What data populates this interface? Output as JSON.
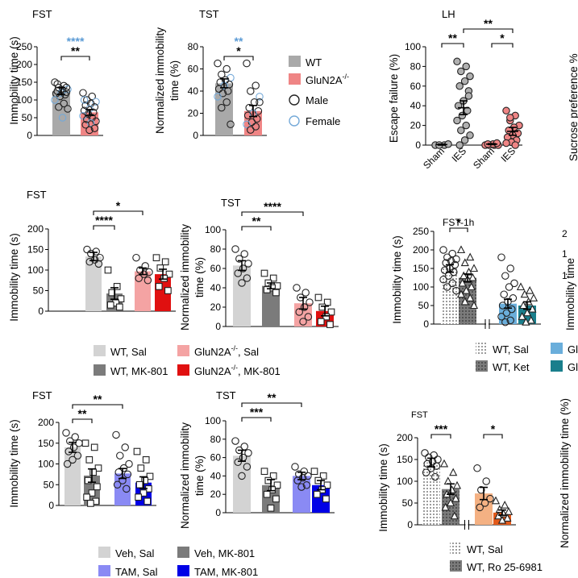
{
  "colors": {
    "wt": "#a9a9a9",
    "glun2a": "#ef8585",
    "male": "#222222",
    "female": "#74a9d8",
    "star_blue": "#5b9bd5",
    "sal_light": "#d3d3d3",
    "mk_dark": "#7b7b7b",
    "glun2a_sal": "#f4a3a3",
    "glun2a_mk": "#e01010",
    "tam_sal": "#8a8af4",
    "tam_mk": "#0000e6",
    "ket_blue": "#6aaedb",
    "ket_teal": "#1a7f8c",
    "ro_orange": "#f4b183",
    "ro_dark_orange": "#e35a1a"
  },
  "legends": {
    "top": [
      {
        "label": "WT",
        "kind": "fill",
        "color": "wt"
      },
      {
        "label": "GluN2A",
        "sup": "-/-",
        "kind": "fill",
        "color": "glun2a"
      },
      {
        "label": "Male",
        "kind": "circle",
        "color": "male"
      },
      {
        "label": "Female",
        "kind": "circle",
        "color": "female"
      }
    ],
    "row2": [
      {
        "label": "WT, Sal",
        "color": "sal_light"
      },
      {
        "label": "GluN2A",
        "sup": "-/-",
        "tail": ", Sal",
        "color": "glun2a_sal"
      },
      {
        "label": "WT, MK-801",
        "color": "mk_dark"
      },
      {
        "label": "GluN2A",
        "sup": "-/-",
        "tail": ", MK-801",
        "color": "glun2a_mk"
      }
    ],
    "ket": [
      {
        "label": "WT, Sal",
        "color": "sal_light",
        "pattern": "dots"
      },
      {
        "label": "WT, Ket",
        "color": "mk_dark",
        "pattern": "dots"
      },
      {
        "label": "Gl",
        "color": "ket_blue"
      },
      {
        "label": "Gl",
        "color": "ket_teal"
      }
    ],
    "row3": [
      {
        "label": "Veh, Sal",
        "color": "sal_light"
      },
      {
        "label": "Veh, MK-801",
        "color": "mk_dark"
      },
      {
        "label": "TAM, Sal",
        "color": "tam_sal"
      },
      {
        "label": "TAM, MK-801",
        "color": "tam_mk"
      }
    ],
    "ro": [
      {
        "label": "WT, Sal",
        "color": "sal_light",
        "pattern": "dots"
      },
      {
        "label": "WT, Ro 25-6981",
        "color": "mk_dark",
        "pattern": "dots"
      }
    ]
  },
  "chart_data": [
    {
      "id": "fst1",
      "type": "bar",
      "title": "FST",
      "ylabel": "Immobility time (s)",
      "ylim": [
        0,
        250
      ],
      "yticks": [
        0,
        50,
        100,
        150,
        200,
        250
      ],
      "categories": [
        "WT",
        "GluN2A-/-"
      ],
      "values": [
        125,
        65
      ],
      "errors": [
        10,
        8
      ],
      "bar_colors": [
        "wt",
        "glun2a"
      ],
      "points": [
        [
          150,
          140,
          135,
          130,
          128,
          125,
          122,
          120,
          118,
          115,
          110,
          100,
          90,
          80,
          75,
          50,
          145,
          135
        ],
        [
          120,
          110,
          100,
          95,
          90,
          85,
          80,
          75,
          70,
          65,
          60,
          55,
          50,
          45,
          40,
          35,
          30,
          20,
          15,
          100
        ]
      ],
      "brackets": [
        {
          "from": 0,
          "to": 1,
          "label": "**"
        },
        {
          "from": 0,
          "to": 1,
          "label": "****",
          "color": "star_blue",
          "level": 2
        }
      ]
    },
    {
      "id": "tst1",
      "type": "bar",
      "title": "TST",
      "ylabel": "Normalized immobility time (%)",
      "ylim": [
        0,
        80
      ],
      "yticks": [
        0,
        20,
        40,
        60,
        80
      ],
      "categories": [
        "WT",
        "GluN2A-/-"
      ],
      "values": [
        47,
        22
      ],
      "errors": [
        4,
        5
      ],
      "bar_colors": [
        "wt",
        "glun2a"
      ],
      "points": [
        [
          65,
          60,
          55,
          52,
          50,
          48,
          46,
          45,
          42,
          40,
          38,
          35,
          30,
          25,
          10
        ],
        [
          65,
          45,
          40,
          35,
          30,
          25,
          22,
          20,
          18,
          15,
          12,
          10,
          8,
          5,
          30
        ]
      ],
      "brackets": [
        {
          "from": 0,
          "to": 1,
          "label": "*"
        },
        {
          "from": 0,
          "to": 1,
          "label": "**",
          "color": "star_blue",
          "level": 2
        }
      ]
    },
    {
      "id": "lh",
      "type": "bar",
      "title": "LH",
      "ylabel": "Escape failure (%)",
      "ylim": [
        0,
        100
      ],
      "yticks": [
        0,
        20,
        40,
        60,
        80,
        100
      ],
      "categories": [
        "Sham",
        "IES",
        "Sham",
        "IES"
      ],
      "values": [
        0.5,
        38,
        1,
        14
      ],
      "errors": [
        0.5,
        7,
        0.5,
        4
      ],
      "bar_colors": [
        "none",
        "none",
        "none",
        "none"
      ],
      "point_colors": [
        "#b0b0b0",
        "#b0b0b0",
        "#ef8585",
        "#ef8585"
      ],
      "points": [
        [
          0,
          0,
          0,
          1
        ],
        [
          85,
          80,
          75,
          70,
          65,
          60,
          55,
          45,
          40,
          35,
          30,
          25,
          20,
          15,
          10,
          5,
          0,
          50
        ],
        [
          0,
          0,
          0,
          0,
          1,
          1,
          2
        ],
        [
          35,
          30,
          25,
          20,
          18,
          15,
          12,
          10,
          8,
          5,
          3,
          2,
          0,
          28
        ]
      ],
      "brackets": [
        {
          "from": 0,
          "to": 1,
          "label": "**"
        },
        {
          "from": 2,
          "to": 3,
          "label": "*"
        },
        {
          "from": 1,
          "to": 3,
          "label": "**",
          "level": 2
        }
      ]
    },
    {
      "id": "fst2",
      "type": "bar",
      "title": "FST",
      "ylabel": "Immobility time (s)",
      "ylim": [
        0,
        200
      ],
      "yticks": [
        0,
        50,
        100,
        150,
        200
      ],
      "categories": [
        "WT, Sal",
        "WT, MK-801",
        "GluN2A-/-, Sal",
        "GluN2A-/-, MK-801"
      ],
      "values": [
        133,
        43,
        97,
        90
      ],
      "errors": [
        10,
        14,
        8,
        12
      ],
      "bar_colors": [
        "sal_light",
        "mk_dark",
        "glun2a_sal",
        "glun2a_mk"
      ],
      "point_shapes": [
        "circle",
        "square",
        "circle",
        "square"
      ],
      "points": [
        [
          150,
          145,
          140,
          130,
          125,
          120,
          115
        ],
        [
          100,
          60,
          45,
          30,
          20,
          15,
          10
        ],
        [
          130,
          110,
          100,
          95,
          90,
          80,
          75
        ],
        [
          130,
          120,
          105,
          90,
          80,
          60,
          50
        ]
      ],
      "brackets": [
        {
          "from": 0,
          "to": 1,
          "label": "****"
        },
        {
          "from": 0,
          "to": 2,
          "label": "*",
          "level": 2
        }
      ]
    },
    {
      "id": "tst2",
      "type": "bar",
      "title": "TST",
      "ylabel": "Normalized immobility time (%)",
      "ylim": [
        0,
        100
      ],
      "yticks": [
        0,
        20,
        40,
        60,
        80,
        100
      ],
      "categories": [
        "WT, Sal",
        "WT, MK-801",
        "GluN2A-/-, Sal",
        "GluN2A-/-, MK-801"
      ],
      "values": [
        63,
        42,
        24,
        16
      ],
      "errors": [
        5,
        3,
        6,
        5
      ],
      "bar_colors": [
        "sal_light",
        "mk_dark",
        "glun2a_sal",
        "glun2a_mk"
      ],
      "point_shapes": [
        "circle",
        "square",
        "circle",
        "square"
      ],
      "points": [
        [
          80,
          75,
          70,
          65,
          60,
          55,
          50,
          45
        ],
        [
          55,
          50,
          45,
          42,
          40,
          38,
          35
        ],
        [
          40,
          35,
          30,
          25,
          20,
          15,
          10,
          5
        ],
        [
          30,
          25,
          20,
          15,
          10,
          5,
          2
        ]
      ],
      "brackets": [
        {
          "from": 0,
          "to": 1,
          "label": "**"
        },
        {
          "from": 0,
          "to": 2,
          "label": "****",
          "level": 2
        }
      ]
    },
    {
      "id": "fst1h",
      "type": "bar",
      "title": "FST-1h",
      "ylabel": "Immobility time (s)",
      "ylim": [
        0,
        250
      ],
      "yticks": [
        0,
        50,
        100,
        150,
        200,
        250
      ],
      "categories": [
        "WT, Sal",
        "WT, Ket",
        "",
        ""
      ],
      "values": [
        150,
        125,
        55,
        50
      ],
      "errors": [
        10,
        10,
        12,
        10
      ],
      "bar_colors": [
        "sal_light",
        "mk_dark",
        "ket_blue",
        "ket_teal"
      ],
      "bar_patterns": [
        "dots",
        "dots",
        "",
        ""
      ],
      "point_shapes": [
        "circle",
        "triangle",
        "circle",
        "triangle"
      ],
      "points": [
        [
          200,
          190,
          180,
          175,
          170,
          165,
          160,
          150,
          145,
          140,
          130,
          120,
          110,
          100,
          90
        ],
        [
          200,
          180,
          165,
          150,
          140,
          130,
          125,
          120,
          110,
          100,
          90,
          80,
          70,
          60,
          50
        ],
        [
          180,
          150,
          130,
          110,
          100,
          80,
          70,
          60,
          50,
          40,
          30,
          20,
          10,
          5
        ],
        [
          100,
          90,
          80,
          70,
          60,
          50,
          40,
          30,
          20,
          10,
          5
        ]
      ],
      "axis_break": true,
      "brackets": [
        {
          "from": 0,
          "to": 1,
          "label": "*"
        }
      ]
    },
    {
      "id": "fst3",
      "type": "bar",
      "title": "FST",
      "ylabel": "Immobility time (s)",
      "ylim": [
        0,
        200
      ],
      "yticks": [
        0,
        50,
        100,
        150,
        200
      ],
      "categories": [
        "Veh, Sal",
        "Veh, MK-801",
        "TAM, Sal",
        "TAM, MK-801"
      ],
      "values": [
        140,
        72,
        77,
        55
      ],
      "errors": [
        12,
        16,
        12,
        14
      ],
      "bar_colors": [
        "sal_light",
        "mk_dark",
        "tam_sal",
        "tam_mk"
      ],
      "point_shapes": [
        "circle",
        "square",
        "circle",
        "square"
      ],
      "points": [
        [
          175,
          165,
          155,
          150,
          140,
          130,
          120,
          110,
          100
        ],
        [
          150,
          140,
          110,
          90,
          80,
          60,
          45,
          30,
          20,
          10,
          5
        ],
        [
          170,
          140,
          120,
          100,
          90,
          80,
          75,
          60,
          50,
          40
        ],
        [
          130,
          110,
          90,
          70,
          60,
          50,
          40,
          30,
          20,
          10
        ]
      ],
      "brackets": [
        {
          "from": 0,
          "to": 1,
          "label": "**"
        },
        {
          "from": 0,
          "to": 2,
          "label": "**",
          "level": 2
        }
      ]
    },
    {
      "id": "tst3",
      "type": "bar",
      "title": "TST",
      "ylabel": "Normalized immobility time (%)",
      "ylim": [
        0,
        100
      ],
      "yticks": [
        0,
        20,
        40,
        60,
        80,
        100
      ],
      "categories": [
        "Veh, Sal",
        "Veh, MK-801",
        "TAM, Sal",
        "TAM, MK-801"
      ],
      "values": [
        62,
        30,
        40,
        30
      ],
      "errors": [
        6,
        6,
        4,
        5
      ],
      "bar_colors": [
        "sal_light",
        "mk_dark",
        "tam_sal",
        "tam_mk"
      ],
      "point_shapes": [
        "circle",
        "square",
        "circle",
        "square"
      ],
      "points": [
        [
          78,
          72,
          68,
          65,
          60,
          55,
          50,
          40
        ],
        [
          45,
          40,
          35,
          30,
          25,
          20,
          15,
          5
        ],
        [
          50,
          45,
          42,
          40,
          38,
          35,
          30,
          28
        ],
        [
          45,
          40,
          35,
          30,
          25,
          20,
          15
        ]
      ],
      "brackets": [
        {
          "from": 0,
          "to": 1,
          "label": "***"
        },
        {
          "from": 0,
          "to": 2,
          "label": "**",
          "level": 2
        }
      ]
    },
    {
      "id": "fst4",
      "type": "bar",
      "title": "FST",
      "ylabel": "Immobility time (s)",
      "ylim": [
        0,
        200
      ],
      "yticks": [
        0,
        50,
        100,
        150,
        200
      ],
      "categories": [
        "WT, Sal",
        "WT, Ro 25-6981",
        "",
        ""
      ],
      "values": [
        143,
        82,
        72,
        28
      ],
      "errors": [
        10,
        12,
        14,
        6
      ],
      "bar_colors": [
        "sal_light",
        "mk_dark",
        "ro_orange",
        "ro_dark_orange"
      ],
      "bar_patterns": [
        "dots",
        "dots",
        "",
        ""
      ],
      "point_shapes": [
        "circle",
        "triangle",
        "circle",
        "triangle"
      ],
      "points": [
        [
          165,
          160,
          155,
          150,
          145,
          140,
          135,
          130,
          120,
          110
        ],
        [
          140,
          120,
          100,
          90,
          80,
          70,
          60,
          50,
          40,
          20
        ],
        [
          130,
          100,
          80,
          60,
          50,
          40
        ],
        [
          55,
          45,
          35,
          30,
          25,
          20,
          15,
          10
        ]
      ],
      "axis_break": true,
      "brackets": [
        {
          "from": 0,
          "to": 1,
          "label": "***"
        },
        {
          "from": 2,
          "to": 3,
          "label": "*"
        }
      ]
    }
  ],
  "cropped_labels": {
    "sucrose": "Sucrose preference %",
    "row2_right_ylabel": "Immobility time",
    "row2_right_ticks": [
      "2",
      "1",
      "1"
    ],
    "row3_right_ylabel": "Normalized immobility time (%)"
  }
}
